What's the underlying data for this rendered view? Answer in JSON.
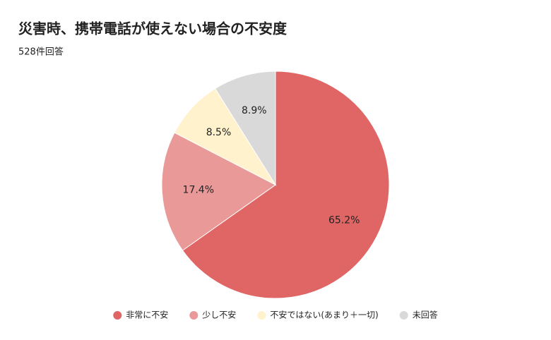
{
  "chart_data": {
    "type": "pie",
    "title": "災害時、携帯電話が使えない場合の不安度",
    "subtitle": "528件回答",
    "categories": [
      "非常に不安",
      "少し不安",
      "不安ではない(あまり＋一切)",
      "未回答"
    ],
    "values": [
      65.2,
      17.4,
      8.5,
      8.9
    ],
    "value_labels": [
      "65.2%",
      "17.4%",
      "8.5%",
      "8.9%"
    ],
    "colors": [
      "#e06666",
      "#ea9999",
      "#fff2cc",
      "#d9d9d9"
    ],
    "legend": "bottom"
  }
}
